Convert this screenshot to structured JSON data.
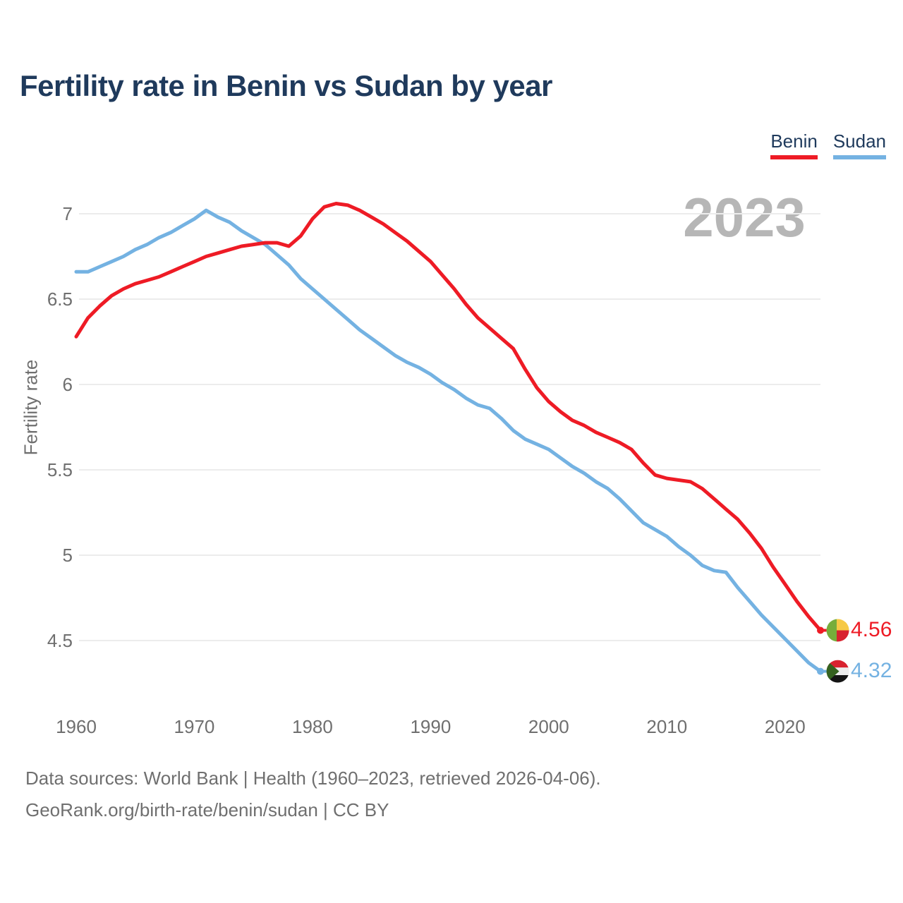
{
  "title": "Fertility rate in Benin vs Sudan by year",
  "watermark": "2023",
  "legend": [
    {
      "label": "Benin",
      "color": "#EE1B25"
    },
    {
      "label": "Sudan",
      "color": "#74B2E2"
    }
  ],
  "y_axis": {
    "label": "Fertility rate",
    "ticks": [
      "7",
      "6.5",
      "6",
      "5.5",
      "5",
      "4.5"
    ],
    "tick_values": [
      7,
      6.5,
      6,
      5.5,
      5,
      4.5
    ]
  },
  "x_axis": {
    "ticks": [
      "1960",
      "1970",
      "1980",
      "1990",
      "2000",
      "2010",
      "2020"
    ],
    "tick_values": [
      1960,
      1970,
      1980,
      1990,
      2000,
      2010,
      2020
    ]
  },
  "end_labels": [
    {
      "series": "Benin",
      "value": "4.56",
      "flag": "benin-flag",
      "color": "#EE1B25"
    },
    {
      "series": "Sudan",
      "value": "4.32",
      "flag": "sudan-flag",
      "color": "#74B2E2"
    }
  ],
  "footer": {
    "line1": "Data sources: World Bank | Health (1960–2023, retrieved 2026-04-06).",
    "line2": "GeoRank.org/birth-rate/benin/sudan | CC BY"
  },
  "colors": {
    "benin_line": "#EE1B25",
    "sudan_line": "#74B2E2",
    "title_text": "#1F3A5C",
    "tick_text": "#6F6F6F",
    "watermark": "#B6B6B6",
    "gridline": "#ECECEC",
    "benin_flag_green": "#76AD3B",
    "benin_flag_yellow": "#F6C945",
    "benin_flag_red": "#D8222F",
    "sudan_flag_red": "#D8222F",
    "sudan_flag_white": "#EDEDED",
    "sudan_flag_black": "#141414",
    "sudan_flag_green": "#35621F"
  },
  "chart_data": {
    "type": "line",
    "title": "Fertility rate in Benin vs Sudan by year",
    "xlabel": "",
    "ylabel": "Fertility rate",
    "x_range": [
      1960,
      2023
    ],
    "ylim": [
      4.2,
      7.2
    ],
    "grid": "horizontal",
    "legend_position": "top-right",
    "x": [
      1960,
      1961,
      1962,
      1963,
      1964,
      1965,
      1966,
      1967,
      1968,
      1969,
      1970,
      1971,
      1972,
      1973,
      1974,
      1975,
      1976,
      1977,
      1978,
      1979,
      1980,
      1981,
      1982,
      1983,
      1984,
      1985,
      1986,
      1987,
      1988,
      1989,
      1990,
      1991,
      1992,
      1993,
      1994,
      1995,
      1996,
      1997,
      1998,
      1999,
      2000,
      2001,
      2002,
      2003,
      2004,
      2005,
      2006,
      2007,
      2008,
      2009,
      2010,
      2011,
      2012,
      2013,
      2014,
      2015,
      2016,
      2017,
      2018,
      2019,
      2020,
      2021,
      2022,
      2023
    ],
    "series": [
      {
        "name": "Benin",
        "color": "#EE1B25",
        "values": [
          6.28,
          6.39,
          6.46,
          6.52,
          6.56,
          6.59,
          6.61,
          6.63,
          6.66,
          6.69,
          6.72,
          6.75,
          6.77,
          6.79,
          6.81,
          6.82,
          6.83,
          6.83,
          6.81,
          6.87,
          6.97,
          7.04,
          7.06,
          7.05,
          7.02,
          6.98,
          6.94,
          6.89,
          6.84,
          6.78,
          6.72,
          6.64,
          6.56,
          6.47,
          6.39,
          6.33,
          6.27,
          6.21,
          6.09,
          5.98,
          5.9,
          5.84,
          5.79,
          5.76,
          5.72,
          5.69,
          5.66,
          5.62,
          5.54,
          5.47,
          5.45,
          5.44,
          5.43,
          5.39,
          5.33,
          5.27,
          5.21,
          5.13,
          5.04,
          4.93,
          4.83,
          4.73,
          4.64,
          4.56
        ]
      },
      {
        "name": "Sudan",
        "color": "#74B2E2",
        "values": [
          6.66,
          6.66,
          6.69,
          6.72,
          6.75,
          6.79,
          6.82,
          6.86,
          6.89,
          6.93,
          6.97,
          7.02,
          6.98,
          6.95,
          6.9,
          6.86,
          6.82,
          6.76,
          6.7,
          6.62,
          6.56,
          6.5,
          6.44,
          6.38,
          6.32,
          6.27,
          6.22,
          6.17,
          6.13,
          6.1,
          6.06,
          6.01,
          5.97,
          5.92,
          5.88,
          5.86,
          5.8,
          5.73,
          5.68,
          5.65,
          5.62,
          5.57,
          5.52,
          5.48,
          5.43,
          5.39,
          5.33,
          5.26,
          5.19,
          5.15,
          5.11,
          5.05,
          5.0,
          4.94,
          4.91,
          4.9,
          4.81,
          4.73,
          4.65,
          4.58,
          4.51,
          4.44,
          4.37,
          4.32
        ]
      }
    ],
    "end_point_labels": {
      "Benin": 4.56,
      "Sudan": 4.32
    },
    "watermark": "2023"
  }
}
